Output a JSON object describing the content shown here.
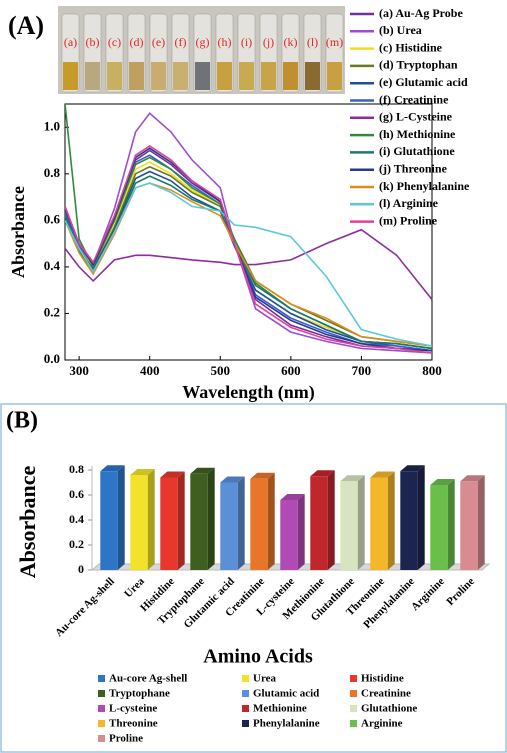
{
  "chart_data": [
    {
      "type": "line",
      "title": "(A)",
      "x_label": "Wavelength (nm)",
      "y_label": "Absorbance",
      "vial_labels": [
        "(a)",
        "(b)",
        "(c)",
        "(d)",
        "(e)",
        "(f)",
        "(g)",
        "(h)",
        "(i)",
        "(j)",
        "(k)",
        "(l)",
        "(m)"
      ],
      "x": [
        280,
        300,
        320,
        350,
        380,
        400,
        430,
        460,
        500,
        520,
        550,
        600,
        650,
        700,
        750,
        800
      ],
      "xlim": [
        280,
        800
      ],
      "xticks": [
        300,
        400,
        500,
        600,
        700,
        800
      ],
      "ylim": [
        0,
        1.1
      ],
      "yticks": [
        {
          "value": 0,
          "label": "0.0"
        },
        0.2,
        0.4,
        0.6,
        0.8,
        {
          "value": 1,
          "label": "1.0"
        }
      ],
      "series": [
        {
          "name": "(a) Au-Ag Probe",
          "color": "#7030a0",
          "values": [
            0.65,
            0.5,
            0.42,
            0.6,
            0.86,
            0.9,
            0.84,
            0.76,
            0.68,
            0.5,
            0.26,
            0.15,
            0.1,
            0.06,
            0.05,
            0.04
          ]
        },
        {
          "name": "(b) Urea",
          "color": "#9b4fd0",
          "values": [
            0.66,
            0.5,
            0.41,
            0.65,
            0.98,
            1.06,
            0.98,
            0.86,
            0.74,
            0.5,
            0.22,
            0.12,
            0.08,
            0.05,
            0.04,
            0.03
          ]
        },
        {
          "name": "(c) Histidine",
          "color": "#eedd22",
          "values": [
            0.64,
            0.49,
            0.4,
            0.58,
            0.82,
            0.85,
            0.8,
            0.73,
            0.66,
            0.5,
            0.3,
            0.2,
            0.14,
            0.08,
            0.07,
            0.05
          ]
        },
        {
          "name": "(d) Tryptophan",
          "color": "#6b7a1a",
          "values": [
            0.63,
            0.48,
            0.39,
            0.57,
            0.8,
            0.83,
            0.79,
            0.72,
            0.66,
            0.52,
            0.34,
            0.24,
            0.17,
            0.1,
            0.08,
            0.06
          ]
        },
        {
          "name": "(e) Glutamic acid",
          "color": "#1f4e9a",
          "values": [
            0.62,
            0.47,
            0.39,
            0.56,
            0.78,
            0.81,
            0.77,
            0.7,
            0.64,
            0.49,
            0.3,
            0.2,
            0.13,
            0.08,
            0.06,
            0.04
          ]
        },
        {
          "name": "(f) Creatinine",
          "color": "#3a5fcd",
          "values": [
            0.64,
            0.49,
            0.41,
            0.6,
            0.85,
            0.88,
            0.82,
            0.75,
            0.67,
            0.5,
            0.28,
            0.18,
            0.12,
            0.07,
            0.06,
            0.04
          ]
        },
        {
          "name": "(g) L-Cysteine",
          "color": "#8e2c9e",
          "values": [
            0.48,
            0.4,
            0.34,
            0.43,
            0.45,
            0.45,
            0.44,
            0.43,
            0.42,
            0.41,
            0.41,
            0.43,
            0.5,
            0.56,
            0.45,
            0.26
          ]
        },
        {
          "name": "(h) Methionine",
          "color": "#2e8b3e",
          "values": [
            1.1,
            0.52,
            0.4,
            0.6,
            0.84,
            0.87,
            0.82,
            0.74,
            0.67,
            0.52,
            0.33,
            0.22,
            0.15,
            0.08,
            0.07,
            0.05
          ]
        },
        {
          "name": "(i) Glutathione",
          "color": "#1a7a6e",
          "values": [
            0.62,
            0.47,
            0.38,
            0.55,
            0.76,
            0.79,
            0.75,
            0.69,
            0.64,
            0.5,
            0.32,
            0.22,
            0.15,
            0.08,
            0.07,
            0.05
          ]
        },
        {
          "name": "(j) Threonine",
          "color": "#2a3a8a",
          "values": [
            0.65,
            0.5,
            0.41,
            0.61,
            0.87,
            0.91,
            0.85,
            0.77,
            0.68,
            0.5,
            0.27,
            0.17,
            0.11,
            0.07,
            0.05,
            0.04
          ]
        },
        {
          "name": "(k) Phenylalanine",
          "color": "#e08a1e",
          "values": [
            0.6,
            0.46,
            0.37,
            0.54,
            0.74,
            0.76,
            0.73,
            0.68,
            0.62,
            0.5,
            0.34,
            0.24,
            0.18,
            0.1,
            0.08,
            0.06
          ]
        },
        {
          "name": "(l) Arginine",
          "color": "#5bc8d8",
          "values": [
            0.6,
            0.48,
            0.38,
            0.55,
            0.74,
            0.76,
            0.72,
            0.66,
            0.64,
            0.58,
            0.57,
            0.53,
            0.36,
            0.13,
            0.09,
            0.06
          ]
        },
        {
          "name": "(m) Proline",
          "color": "#e0409a",
          "values": [
            0.66,
            0.5,
            0.42,
            0.62,
            0.88,
            0.92,
            0.86,
            0.77,
            0.69,
            0.5,
            0.24,
            0.14,
            0.09,
            0.06,
            0.05,
            0.03
          ]
        }
      ]
    },
    {
      "type": "bar3d",
      "title": "(B)",
      "x_label": "Amino Acids",
      "y_label": "Absorbance",
      "categories": [
        "Au-core Ag-shell",
        "Urea",
        "Histidine",
        "Tryptophane",
        "Glutamic acid",
        "Creatinine",
        "L-cysteine",
        "Methionine",
        "Glutathione",
        "Threonine",
        "Phenylalanine",
        "Arginine",
        "Proline"
      ],
      "values": [
        0.79,
        0.76,
        0.74,
        0.77,
        0.7,
        0.73,
        0.56,
        0.75,
        0.71,
        0.74,
        0.79,
        0.68,
        0.71
      ],
      "colors": [
        "#2e75c8",
        "#f2e32a",
        "#e8372c",
        "#3f5f1e",
        "#5b8fd6",
        "#e8762a",
        "#b24ab6",
        "#c0272d",
        "#d6e4c0",
        "#f5b72a",
        "#1c2550",
        "#6abf4b",
        "#d88b90"
      ],
      "ylim": [
        0,
        0.8
      ],
      "yticks": [
        0,
        0.2,
        0.4,
        0.6,
        0.8
      ]
    }
  ]
}
